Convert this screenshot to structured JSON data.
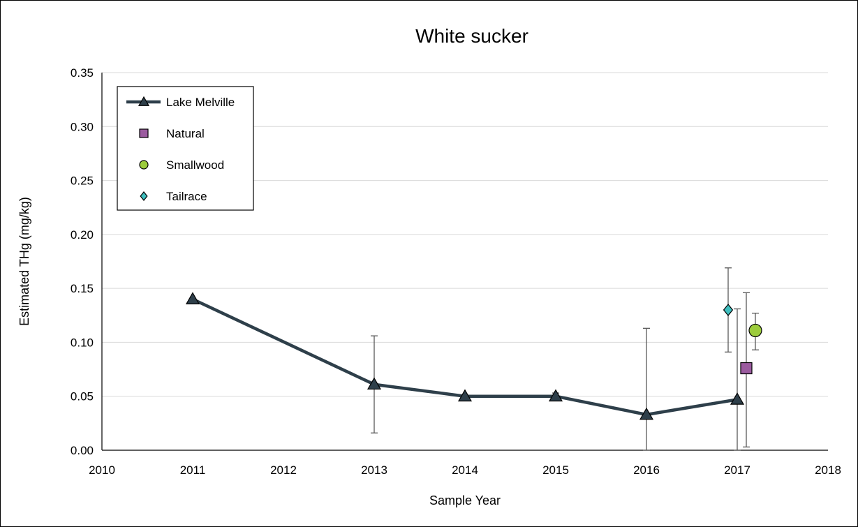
{
  "chart_data": {
    "type": "scatter",
    "title": "White sucker",
    "xlabel": "Sample Year",
    "ylabel": "Estimated THg (mg/kg)",
    "xlim": [
      2010,
      2018
    ],
    "ylim": [
      0,
      0.35
    ],
    "x_ticks": [
      2010,
      2011,
      2012,
      2013,
      2014,
      2015,
      2016,
      2017,
      2018
    ],
    "y_ticks": [
      "0.00",
      "0.05",
      "0.10",
      "0.15",
      "0.20",
      "0.25",
      "0.30",
      "0.35"
    ],
    "grid": "horizontal",
    "legend_position": "top-left",
    "series": [
      {
        "name": "Lake Melville",
        "marker": "triangle",
        "line": true,
        "color": "#2e3f4a",
        "points": [
          {
            "x": 2011,
            "y": 0.14,
            "err_low": null,
            "err_high": null
          },
          {
            "x": 2013,
            "y": 0.061,
            "err_low": 0.016,
            "err_high": 0.106
          },
          {
            "x": 2014,
            "y": 0.05,
            "err_low": null,
            "err_high": null
          },
          {
            "x": 2015,
            "y": 0.05,
            "err_low": 0.048,
            "err_high": 0.053
          },
          {
            "x": 2016,
            "y": 0.033,
            "err_low": 0.0,
            "err_high": 0.113
          },
          {
            "x": 2017,
            "y": 0.047,
            "err_low": 0.0,
            "err_high": 0.131
          }
        ]
      },
      {
        "name": "Natural",
        "marker": "square",
        "line": false,
        "color": "#9b5b9f",
        "points": [
          {
            "x": 2017.1,
            "y": 0.076,
            "err_low": 0.003,
            "err_high": 0.146
          }
        ]
      },
      {
        "name": "Smallwood",
        "marker": "circle",
        "line": false,
        "color": "#9ccc3c",
        "points": [
          {
            "x": 2017.2,
            "y": 0.111,
            "err_low": 0.093,
            "err_high": 0.127
          }
        ]
      },
      {
        "name": "Tailrace",
        "marker": "diamond",
        "line": false,
        "color": "#3fbfbf",
        "points": [
          {
            "x": 2016.9,
            "y": 0.13,
            "err_low": 0.091,
            "err_high": 0.169
          }
        ]
      }
    ]
  }
}
